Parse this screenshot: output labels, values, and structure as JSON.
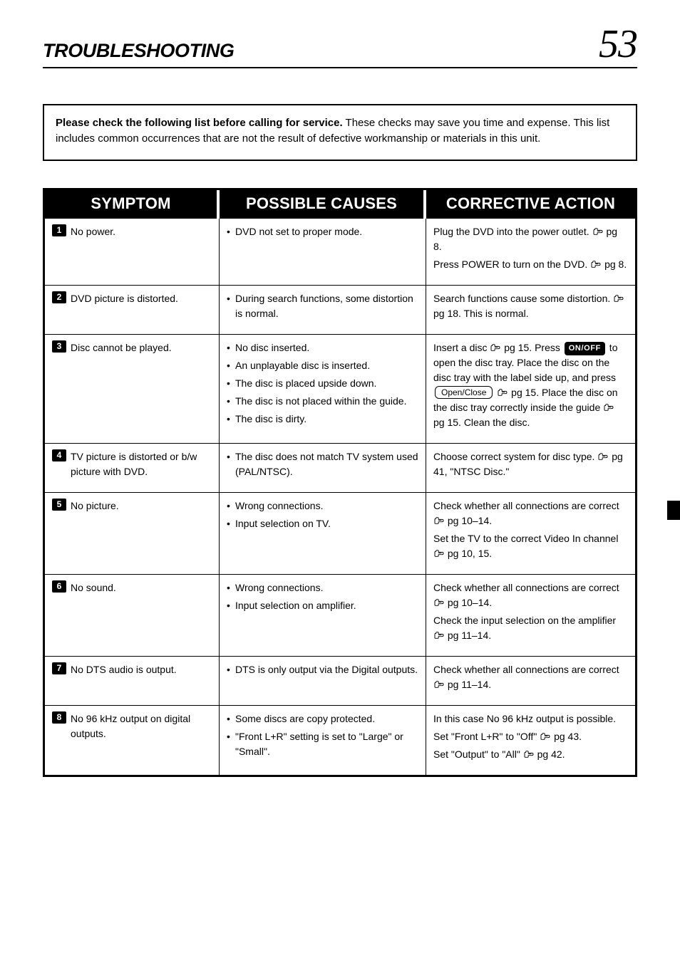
{
  "header": {
    "section_title": "TROUBLESHOOTING",
    "page_number": "53"
  },
  "notice": {
    "lead": "Please check the following list before calling for service.",
    "body": "These checks may save you time and expense. This list includes common occurrences that are not the result of defective workmanship or materials in this unit."
  },
  "table": {
    "columns": {
      "symptom": "SYMPTOM",
      "causes": "POSSIBLE CAUSES",
      "action": "CORRECTIVE ACTION"
    },
    "rows": [
      {
        "num": "1",
        "symptom": "No power.",
        "causes": [
          "DVD not set to proper mode."
        ],
        "actions": [
          {
            "pre": "Plug the DVD into the power outlet. ",
            "pointer": true,
            "post": "pg 8."
          },
          {
            "pre": "Press POWER to turn on the DVD. ",
            "pointer": true,
            "post": "pg 8."
          }
        ]
      },
      {
        "num": "2",
        "symptom": "DVD picture is distorted.",
        "causes": [
          "During search functions, some distortion is normal."
        ],
        "actions": [
          {
            "pre": "Search functions cause some distortion. ",
            "pointer": true,
            "post": "pg 18. This is normal."
          }
        ]
      },
      {
        "num": "3",
        "symptom": "Disc cannot be played.",
        "causes": [
          "No disc inserted.",
          "An unplayable disc is inserted.",
          "The disc is placed upside down.",
          "The disc is not placed within the guide.",
          "The disc is dirty."
        ],
        "actions": [
          {
            "pre": "Insert a disc ",
            "pointer": true,
            "post": "pg 15. Press ",
            "onoff": true,
            "post2": " to open the disc tray. Place the disc on the disc tray with the label side up, and press ",
            "key": "Open/Close",
            "post3": " ",
            "pointer2": true,
            "post4": "pg 15. Place the disc on the disc tray correctly inside the guide ",
            "pointer3": true,
            "post5": "pg 15. Clean the disc."
          }
        ],
        "complex": true
      },
      {
        "num": "4",
        "symptom": "TV picture is distorted or b/w picture with DVD.",
        "causes": [
          "The disc does not match TV system used (PAL/NTSC)."
        ],
        "actions": [
          {
            "pre": "Choose correct system for disc type. ",
            "pointer": true,
            "post": "pg 41, \"NTSC Disc.\""
          }
        ]
      },
      {
        "num": "5",
        "symptom": "No picture.",
        "causes": [
          "Wrong connections.",
          "Input selection on TV."
        ],
        "actions": [
          {
            "pre": "Check whether all connections are correct ",
            "pointer": true,
            "post": "pg 10–14."
          },
          {
            "pre": "Set the TV to the correct Video In channel ",
            "pointer": true,
            "post": "pg 10, 15."
          }
        ]
      },
      {
        "num": "6",
        "symptom": "No sound.",
        "causes": [
          "Wrong connections.",
          "Input selection on amplifier."
        ],
        "actions": [
          {
            "pre": "Check whether all connections are correct ",
            "pointer": true,
            "post": "pg 10–14."
          },
          {
            "pre": "Check the input selection on the amplifier ",
            "pointer": true,
            "post": "pg 11–14."
          }
        ]
      },
      {
        "num": "7",
        "symptom": "No DTS audio is output.",
        "causes": [
          "DTS is only output via the Digital outputs."
        ],
        "actions": [
          {
            "pre": "Check whether all connections are correct ",
            "pointer": true,
            "post": "pg 11–14."
          }
        ]
      },
      {
        "num": "8",
        "symptom": "No 96 kHz output on digital outputs.",
        "causes": [
          "Some discs are copy protected.",
          "\"Front L+R\" setting is set to \"Large\" or \"Small\"."
        ],
        "actions": [
          {
            "pre": "In this case No 96 kHz output is possible."
          },
          {
            "pre": "Set \"Front L+R\" to \"Off\" ",
            "pointer": true,
            "post": "pg 43."
          },
          {
            "pre": "Set \"Output\" to \"All\" ",
            "pointer": true,
            "post": "pg 42."
          }
        ]
      }
    ]
  }
}
